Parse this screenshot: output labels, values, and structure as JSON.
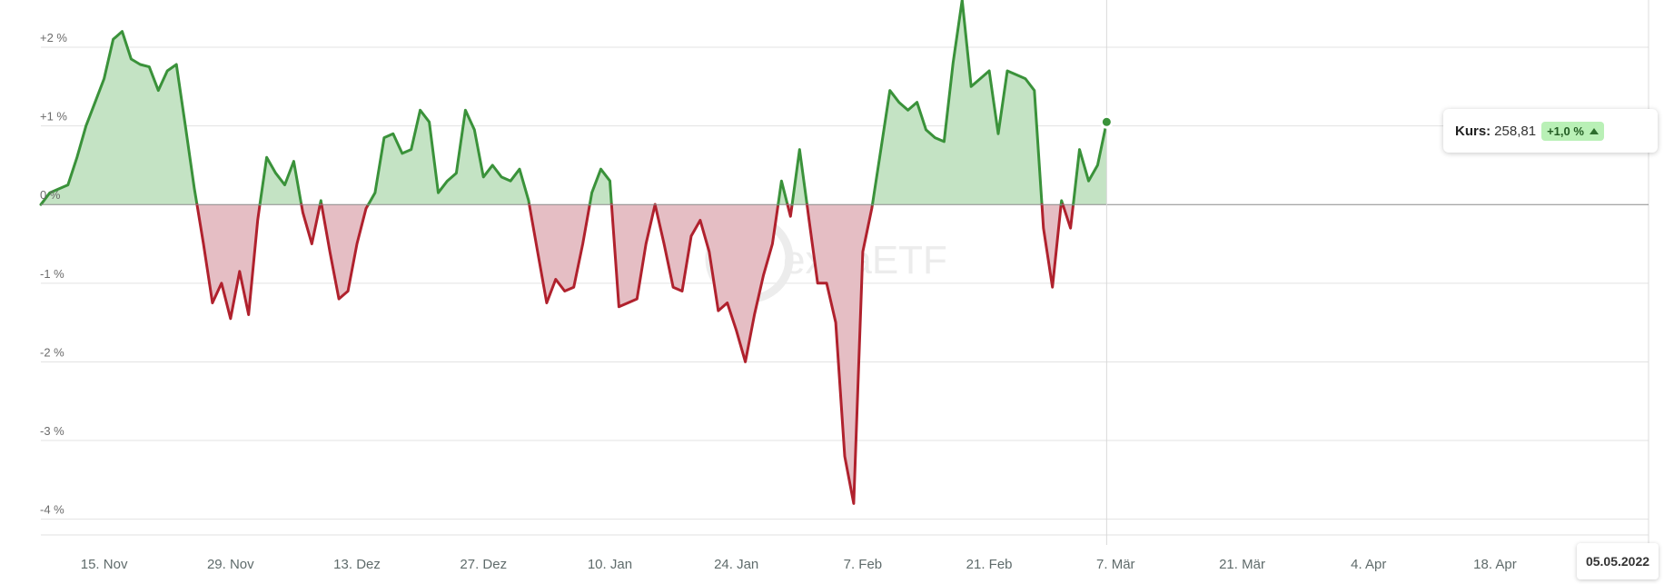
{
  "chart_data": {
    "type": "area",
    "title": "",
    "xlabel": "",
    "ylabel": "",
    "y_unit": "%",
    "ylim": [
      -4.2,
      2.6
    ],
    "y_ticks": [
      {
        "value": 2,
        "label": "+2 %"
      },
      {
        "value": 1,
        "label": "+1 %"
      },
      {
        "value": 0,
        "label": "0 %"
      },
      {
        "value": -1,
        "label": "-1 %"
      },
      {
        "value": -2,
        "label": "-2 %"
      },
      {
        "value": -3,
        "label": "-3 %"
      },
      {
        "value": -4,
        "label": "-4 %"
      }
    ],
    "x_ticks": [
      {
        "date": "2021-11-15",
        "label": "15. Nov"
      },
      {
        "date": "2021-11-29",
        "label": "29. Nov"
      },
      {
        "date": "2021-12-13",
        "label": "13. Dez"
      },
      {
        "date": "2021-12-27",
        "label": "27. Dez"
      },
      {
        "date": "2022-01-10",
        "label": "10. Jan"
      },
      {
        "date": "2022-01-24",
        "label": "24. Jan"
      },
      {
        "date": "2022-02-07",
        "label": "7. Feb"
      },
      {
        "date": "2022-02-21",
        "label": "21. Feb"
      },
      {
        "date": "2022-03-07",
        "label": "7. Mär"
      },
      {
        "date": "2022-03-21",
        "label": "21. Mär"
      },
      {
        "date": "2022-04-04",
        "label": "4. Apr"
      },
      {
        "date": "2022-04-18",
        "label": "18. Apr"
      }
    ],
    "x_range": [
      "2021-11-08",
      "2022-05-05"
    ],
    "grid": true,
    "positive_color": "#3a923a",
    "positive_fill": "#c4e3c4",
    "negative_color": "#b0212d",
    "negative_fill": "#e5bec4",
    "series": [
      {
        "points": [
          [
            "2021-11-08",
            0.0
          ],
          [
            "2021-11-09",
            0.15
          ],
          [
            "2021-11-10",
            0.2
          ],
          [
            "2021-11-11",
            0.25
          ],
          [
            "2021-11-12",
            0.6
          ],
          [
            "2021-11-13",
            1.0
          ],
          [
            "2021-11-14",
            1.3
          ],
          [
            "2021-11-15",
            1.6
          ],
          [
            "2021-11-16",
            2.1
          ],
          [
            "2021-11-17",
            2.2
          ],
          [
            "2021-11-18",
            1.85
          ],
          [
            "2021-11-19",
            1.78
          ],
          [
            "2021-11-20",
            1.75
          ],
          [
            "2021-11-21",
            1.45
          ],
          [
            "2021-11-22",
            1.7
          ],
          [
            "2021-11-23",
            1.78
          ],
          [
            "2021-11-24",
            1.0
          ],
          [
            "2021-11-25",
            0.2
          ],
          [
            "2021-11-26",
            -0.5
          ],
          [
            "2021-11-27",
            -1.25
          ],
          [
            "2021-11-28",
            -1.0
          ],
          [
            "2021-11-29",
            -1.45
          ],
          [
            "2021-11-30",
            -0.85
          ],
          [
            "2021-12-01",
            -1.4
          ],
          [
            "2021-12-02",
            -0.2
          ],
          [
            "2021-12-03",
            0.6
          ],
          [
            "2021-12-04",
            0.4
          ],
          [
            "2021-12-05",
            0.25
          ],
          [
            "2021-12-06",
            0.55
          ],
          [
            "2021-12-07",
            -0.1
          ],
          [
            "2021-12-08",
            -0.5
          ],
          [
            "2021-12-09",
            0.05
          ],
          [
            "2021-12-10",
            -0.6
          ],
          [
            "2021-12-11",
            -1.2
          ],
          [
            "2021-12-12",
            -1.1
          ],
          [
            "2021-12-13",
            -0.5
          ],
          [
            "2021-12-14",
            -0.05
          ],
          [
            "2021-12-15",
            0.15
          ],
          [
            "2021-12-16",
            0.85
          ],
          [
            "2021-12-17",
            0.9
          ],
          [
            "2021-12-18",
            0.65
          ],
          [
            "2021-12-19",
            0.7
          ],
          [
            "2021-12-20",
            1.2
          ],
          [
            "2021-12-21",
            1.05
          ],
          [
            "2021-12-22",
            0.15
          ],
          [
            "2021-12-23",
            0.3
          ],
          [
            "2021-12-24",
            0.4
          ],
          [
            "2021-12-25",
            1.2
          ],
          [
            "2021-12-26",
            0.95
          ],
          [
            "2021-12-27",
            0.35
          ],
          [
            "2021-12-28",
            0.5
          ],
          [
            "2021-12-29",
            0.35
          ],
          [
            "2021-12-30",
            0.3
          ],
          [
            "2021-12-31",
            0.45
          ],
          [
            "2022-01-01",
            0.05
          ],
          [
            "2022-01-02",
            -0.6
          ],
          [
            "2022-01-03",
            -1.25
          ],
          [
            "2022-01-04",
            -0.95
          ],
          [
            "2022-01-05",
            -1.1
          ],
          [
            "2022-01-06",
            -1.05
          ],
          [
            "2022-01-07",
            -0.5
          ],
          [
            "2022-01-08",
            0.15
          ],
          [
            "2022-01-09",
            0.45
          ],
          [
            "2022-01-10",
            0.3
          ],
          [
            "2022-01-11",
            -1.3
          ],
          [
            "2022-01-12",
            -1.25
          ],
          [
            "2022-01-13",
            -1.2
          ],
          [
            "2022-01-14",
            -0.5
          ],
          [
            "2022-01-15",
            0.0
          ],
          [
            "2022-01-16",
            -0.5
          ],
          [
            "2022-01-17",
            -1.05
          ],
          [
            "2022-01-18",
            -1.1
          ],
          [
            "2022-01-19",
            -0.4
          ],
          [
            "2022-01-20",
            -0.2
          ],
          [
            "2022-01-21",
            -0.6
          ],
          [
            "2022-01-22",
            -1.35
          ],
          [
            "2022-01-23",
            -1.25
          ],
          [
            "2022-01-24",
            -1.6
          ],
          [
            "2022-01-25",
            -2.0
          ],
          [
            "2022-01-26",
            -1.4
          ],
          [
            "2022-01-27",
            -0.9
          ],
          [
            "2022-01-28",
            -0.5
          ],
          [
            "2022-01-29",
            0.3
          ],
          [
            "2022-01-30",
            -0.15
          ],
          [
            "2022-01-31",
            0.7
          ],
          [
            "2022-02-01",
            -0.15
          ],
          [
            "2022-02-02",
            -1.0
          ],
          [
            "2022-02-03",
            -1.0
          ],
          [
            "2022-02-04",
            -1.5
          ],
          [
            "2022-02-05",
            -3.2
          ],
          [
            "2022-02-06",
            -3.8
          ],
          [
            "2022-02-07",
            -0.6
          ],
          [
            "2022-02-08",
            -0.05
          ],
          [
            "2022-02-09",
            0.7
          ],
          [
            "2022-02-10",
            1.45
          ],
          [
            "2022-02-11",
            1.3
          ],
          [
            "2022-02-12",
            1.2
          ],
          [
            "2022-02-13",
            1.3
          ],
          [
            "2022-02-14",
            0.95
          ],
          [
            "2022-02-15",
            0.85
          ],
          [
            "2022-02-16",
            0.8
          ],
          [
            "2022-02-17",
            1.8
          ],
          [
            "2022-02-18",
            2.6
          ],
          [
            "2022-02-19",
            1.5
          ],
          [
            "2022-02-20",
            1.6
          ],
          [
            "2022-02-21",
            1.7
          ],
          [
            "2022-02-22",
            0.9
          ],
          [
            "2022-02-23",
            1.7
          ],
          [
            "2022-02-24",
            1.65
          ],
          [
            "2022-02-25",
            1.6
          ],
          [
            "2022-02-26",
            1.45
          ],
          [
            "2022-02-27",
            -0.3
          ],
          [
            "2022-02-28",
            -1.05
          ],
          [
            "2022-03-01",
            0.05
          ],
          [
            "2022-03-02",
            -0.3
          ],
          [
            "2022-03-03",
            0.7
          ],
          [
            "2022-03-04",
            0.3
          ],
          [
            "2022-03-05",
            0.5
          ],
          [
            "2022-03-06",
            1.05
          ]
        ]
      }
    ],
    "tooltip": {
      "label": "Kurs:",
      "value": "258,81",
      "change": "+1,0 %"
    },
    "selected_date_label": "05.05.2022"
  },
  "watermark": "extraETF"
}
